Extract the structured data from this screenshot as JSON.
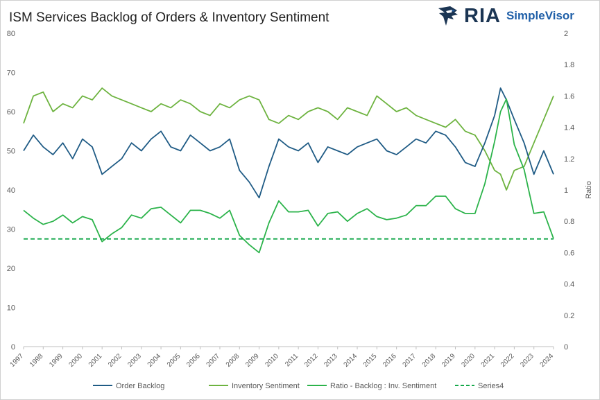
{
  "header": {
    "title": "ISM Services Backlog of Orders & Inventory Sentiment",
    "logo_main": "RIA",
    "logo_sub": "SimpleVisor"
  },
  "colors": {
    "order_backlog": "#1f5b85",
    "inventory_sentiment": "#6db33f",
    "ratio": "#2bb34a",
    "series4": "#14a84a",
    "logo_dark": "#1b3553",
    "logo_blue": "#1f5fa8"
  },
  "chart_data": {
    "type": "line",
    "title": "ISM Services Backlog of Orders & Inventory Sentiment",
    "xlabel": "",
    "ylabel_left": "",
    "ylabel_right": "Ratio",
    "xlim": [
      1997.0,
      2024.0
    ],
    "ylim_left": [
      0,
      80
    ],
    "ylim_right": [
      0,
      2
    ],
    "y_left_ticks": [
      "0",
      "10",
      "20",
      "30",
      "40",
      "50",
      "60",
      "70",
      "80"
    ],
    "y_right_ticks": [
      "0",
      "0.2",
      "0.4",
      "0.6",
      "0.8",
      "1",
      "1.2",
      "1.4",
      "1.6",
      "1.8",
      "2"
    ],
    "x_ticks": [
      "1997",
      "1998",
      "1999",
      "2000",
      "2001",
      "2002",
      "2003",
      "2004",
      "2005",
      "2006",
      "2007",
      "2008",
      "2009",
      "2010",
      "2011",
      "2012",
      "2013",
      "2014",
      "2015",
      "2016",
      "2017",
      "2018",
      "2019",
      "2020",
      "2021",
      "2022",
      "2023",
      "2024"
    ],
    "grid": false,
    "legend_position": "bottom",
    "series": [
      {
        "name": "Order Backlog",
        "axis": "left",
        "style": "solid",
        "x": [
          1997.0,
          1997.5,
          1998.0,
          1998.5,
          1999.0,
          1999.5,
          2000.0,
          2000.5,
          2001.0,
          2001.5,
          2002.0,
          2002.5,
          2003.0,
          2003.5,
          2004.0,
          2004.5,
          2005.0,
          2005.5,
          2006.0,
          2006.5,
          2007.0,
          2007.5,
          2008.0,
          2008.5,
          2009.0,
          2009.5,
          2010.0,
          2010.5,
          2011.0,
          2011.5,
          2012.0,
          2012.5,
          2013.0,
          2013.5,
          2014.0,
          2014.5,
          2015.0,
          2015.5,
          2016.0,
          2016.5,
          2017.0,
          2017.5,
          2018.0,
          2018.5,
          2019.0,
          2019.5,
          2020.0,
          2020.5,
          2021.0,
          2021.3,
          2021.6,
          2022.0,
          2022.5,
          2023.0,
          2023.5,
          2024.0
        ],
        "y": [
          50,
          54,
          51,
          49,
          52,
          48,
          53,
          51,
          44,
          46,
          48,
          52,
          50,
          53,
          55,
          51,
          50,
          54,
          52,
          50,
          51,
          53,
          45,
          42,
          38,
          46,
          53,
          51,
          50,
          52,
          47,
          51,
          50,
          49,
          51,
          52,
          53,
          50,
          49,
          51,
          53,
          52,
          55,
          54,
          51,
          47,
          46,
          52,
          59,
          66,
          63,
          58,
          52,
          44,
          50,
          44
        ]
      },
      {
        "name": "Inventory Sentiment",
        "axis": "left",
        "style": "solid",
        "x": [
          1997.0,
          1997.5,
          1998.0,
          1998.5,
          1999.0,
          1999.5,
          2000.0,
          2000.5,
          2001.0,
          2001.5,
          2002.0,
          2002.5,
          2003.0,
          2003.5,
          2004.0,
          2004.5,
          2005.0,
          2005.5,
          2006.0,
          2006.5,
          2007.0,
          2007.5,
          2008.0,
          2008.5,
          2009.0,
          2009.5,
          2010.0,
          2010.5,
          2011.0,
          2011.5,
          2012.0,
          2012.5,
          2013.0,
          2013.5,
          2014.0,
          2014.5,
          2015.0,
          2015.5,
          2016.0,
          2016.5,
          2017.0,
          2017.5,
          2018.0,
          2018.5,
          2019.0,
          2019.5,
          2020.0,
          2020.5,
          2021.0,
          2021.3,
          2021.6,
          2022.0,
          2022.5,
          2023.0,
          2023.5,
          2024.0
        ],
        "y": [
          57,
          64,
          65,
          60,
          62,
          61,
          64,
          63,
          66,
          64,
          63,
          62,
          61,
          60,
          62,
          61,
          63,
          62,
          60,
          59,
          62,
          61,
          63,
          64,
          63,
          58,
          57,
          59,
          58,
          60,
          61,
          60,
          58,
          61,
          60,
          59,
          64,
          62,
          60,
          61,
          59,
          58,
          57,
          56,
          58,
          55,
          54,
          50,
          45,
          44,
          40,
          45,
          46,
          52,
          58,
          64
        ]
      },
      {
        "name": "Ratio - Backlog : Inv. Sentiment",
        "axis": "right",
        "style": "solid",
        "x": [
          1997.0,
          1997.5,
          1998.0,
          1998.5,
          1999.0,
          1999.5,
          2000.0,
          2000.5,
          2001.0,
          2001.5,
          2002.0,
          2002.5,
          2003.0,
          2003.5,
          2004.0,
          2004.5,
          2005.0,
          2005.5,
          2006.0,
          2006.5,
          2007.0,
          2007.5,
          2008.0,
          2008.5,
          2009.0,
          2009.5,
          2010.0,
          2010.5,
          2011.0,
          2011.5,
          2012.0,
          2012.5,
          2013.0,
          2013.5,
          2014.0,
          2014.5,
          2015.0,
          2015.5,
          2016.0,
          2016.5,
          2017.0,
          2017.5,
          2018.0,
          2018.5,
          2019.0,
          2019.5,
          2020.0,
          2020.5,
          2021.0,
          2021.3,
          2021.6,
          2022.0,
          2022.5,
          2023.0,
          2023.5,
          2024.0
        ],
        "y": [
          0.87,
          0.82,
          0.78,
          0.8,
          0.84,
          0.79,
          0.83,
          0.81,
          0.67,
          0.72,
          0.76,
          0.84,
          0.82,
          0.88,
          0.89,
          0.84,
          0.79,
          0.87,
          0.87,
          0.85,
          0.82,
          0.87,
          0.71,
          0.65,
          0.6,
          0.79,
          0.93,
          0.86,
          0.86,
          0.87,
          0.77,
          0.85,
          0.86,
          0.8,
          0.85,
          0.88,
          0.83,
          0.81,
          0.82,
          0.84,
          0.9,
          0.9,
          0.96,
          0.96,
          0.88,
          0.85,
          0.85,
          1.04,
          1.31,
          1.5,
          1.58,
          1.29,
          1.13,
          0.85,
          0.86,
          0.69
        ]
      },
      {
        "name": "Series4",
        "axis": "left",
        "style": "dashed",
        "x": [
          1997.0,
          2024.0
        ],
        "y": [
          27.5,
          27.5
        ]
      }
    ]
  }
}
